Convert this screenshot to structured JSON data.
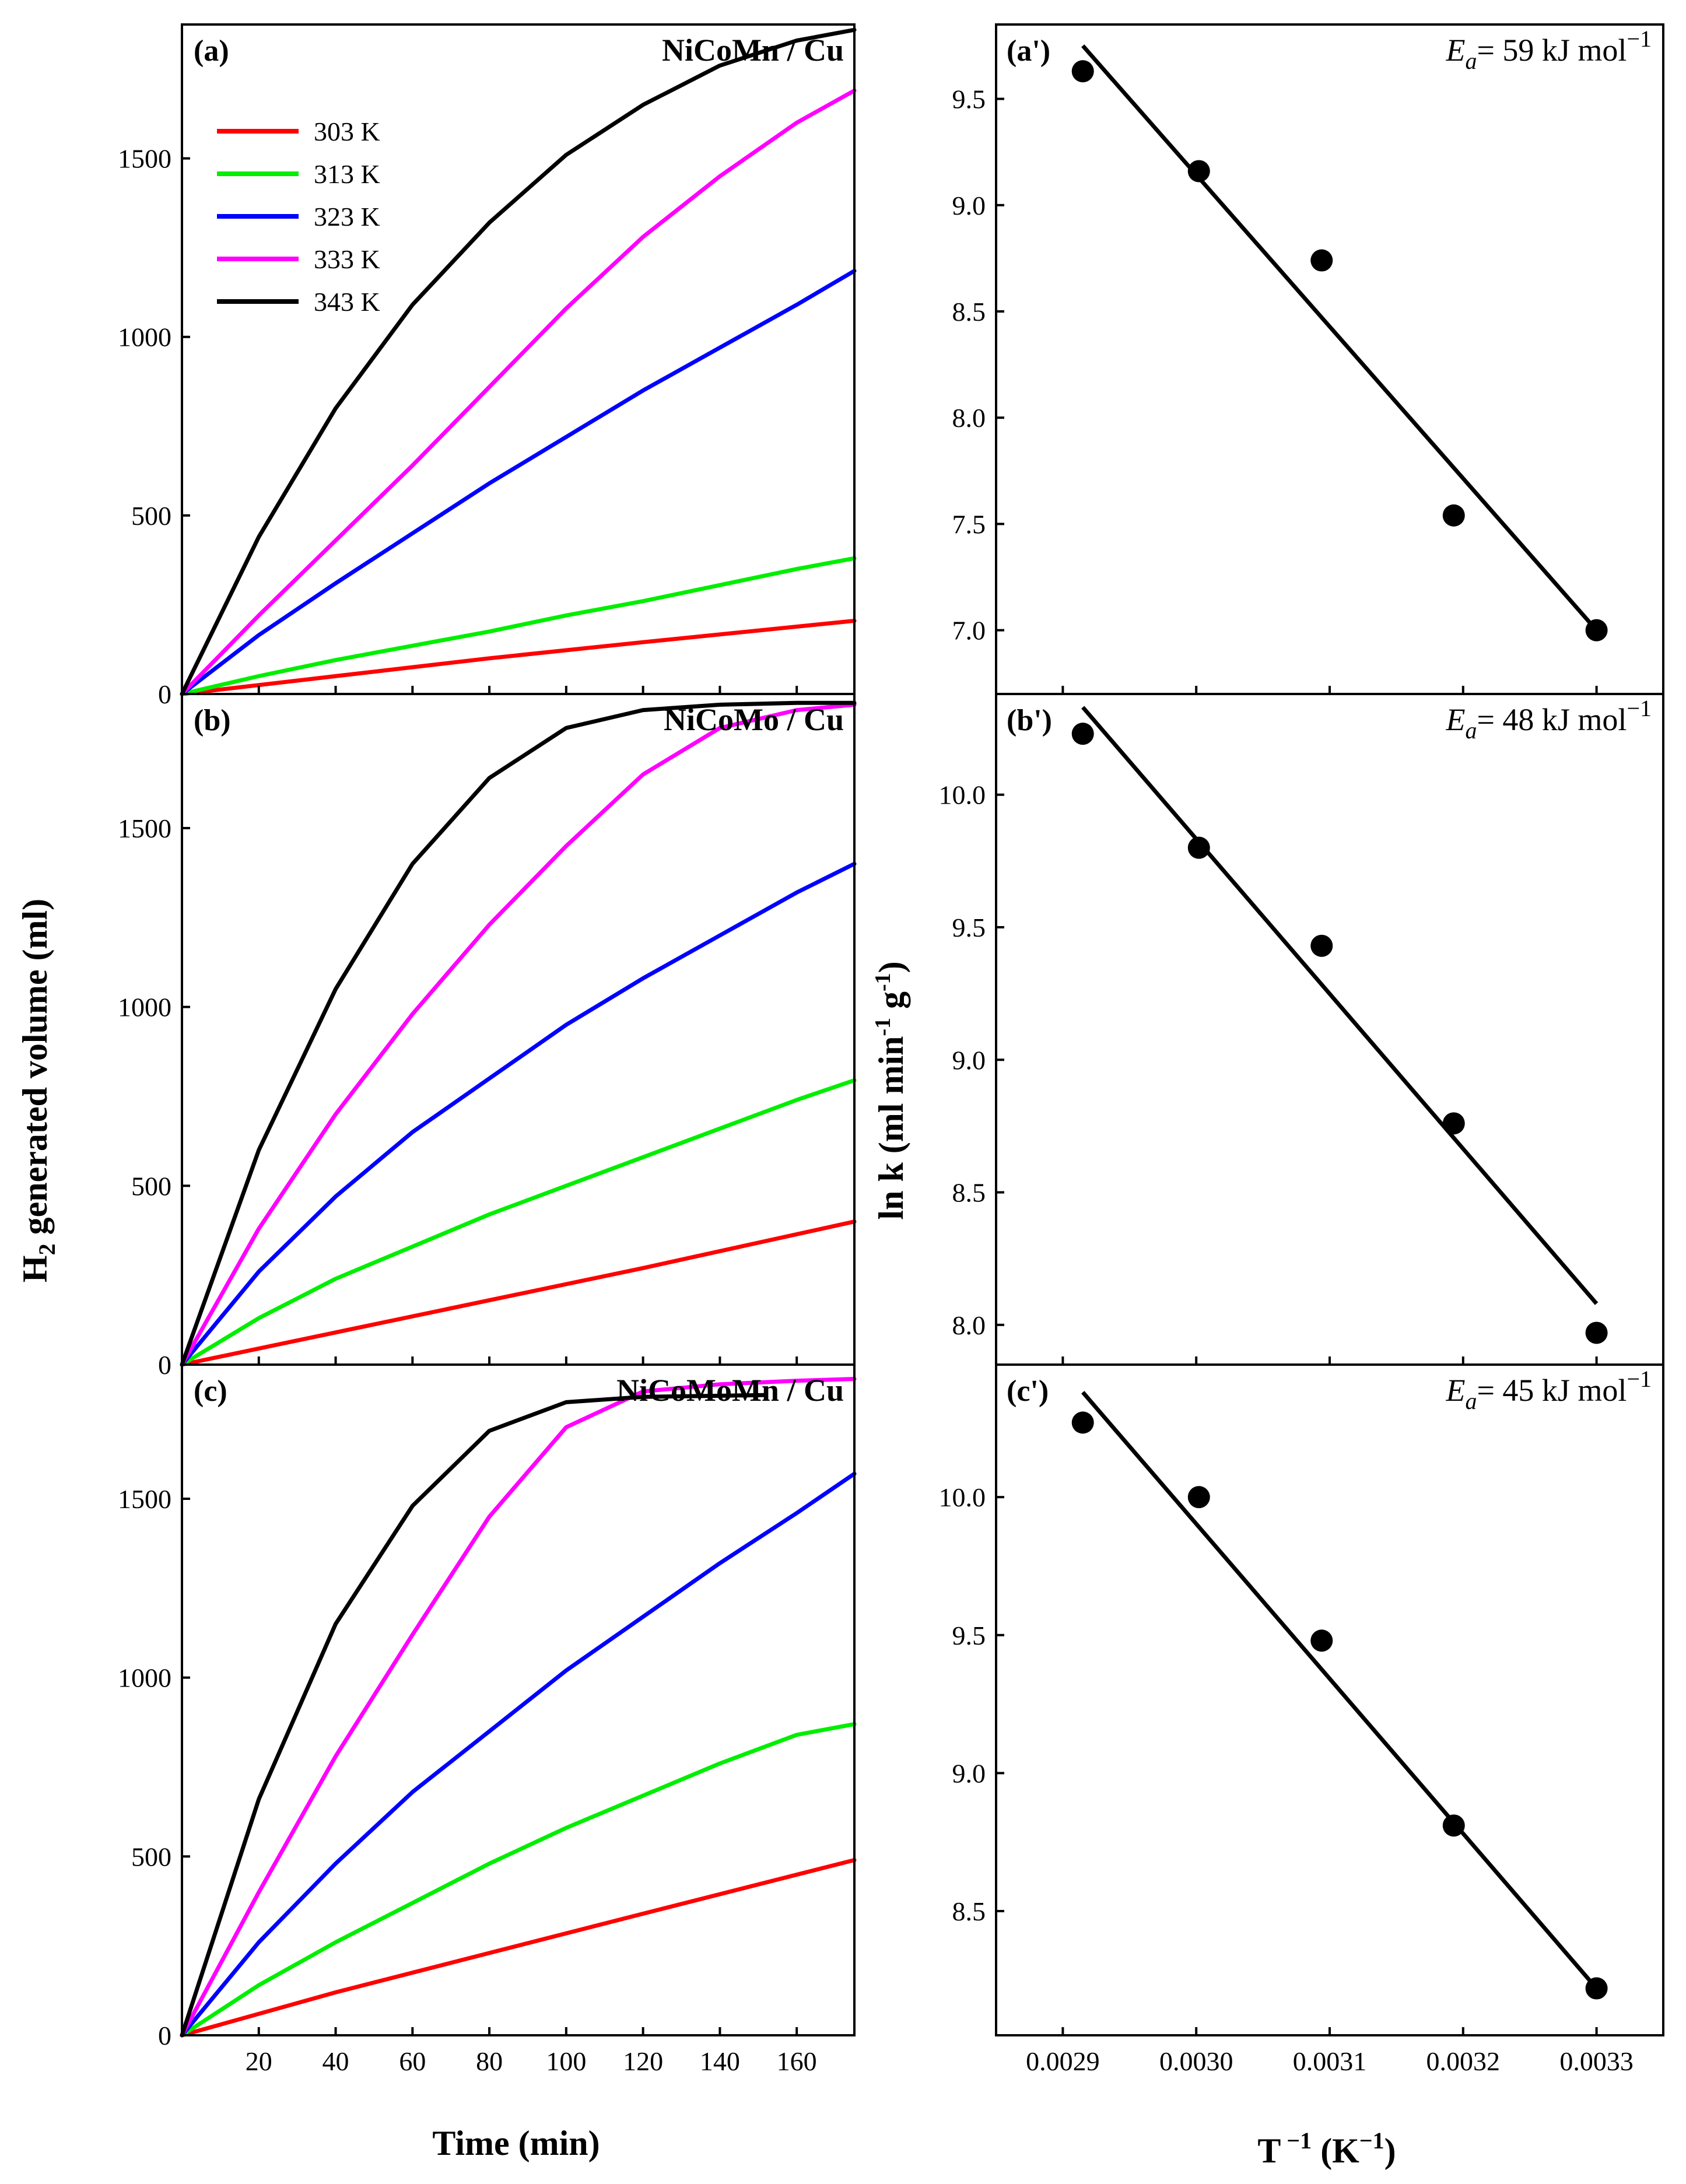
{
  "colors": {
    "303 K": "#ff0000",
    "313 K": "#00ee00",
    "323 K": "#0000ff",
    "333 K": "#ff00ff",
    "343 K": "#000000"
  },
  "left_axis": {
    "ylabel_main": "H",
    "ylabel_sub": "2",
    "ylabel_rest": " generated volume (ml)",
    "xlabel": "Time (min)",
    "xlim": [
      0,
      175
    ],
    "ylim": [
      0,
      1875
    ],
    "yticks": [
      0,
      500,
      1000,
      1500
    ],
    "xticks": [
      20,
      40,
      60,
      80,
      100,
      120,
      140,
      160
    ]
  },
  "right_axis": {
    "ylabel_main": "ln k (ml min",
    "ylabel_sup1": "-1",
    "ylabel_mid": " g",
    "ylabel_sup2": "-1",
    "ylabel_end": ")",
    "xlabel_main": "T",
    "xlabel_sup1": " −1",
    "xlabel_mid": " (K",
    "xlabel_sup2": "−1",
    "xlabel_end": ")",
    "xlim": [
      0.00285,
      0.00335
    ],
    "xticks": [
      "0.0029",
      "0.0030",
      "0.0031",
      "0.0032",
      "0.0033"
    ]
  },
  "legend": [
    "303 K",
    "313 K",
    "323 K",
    "333 K",
    "343 K"
  ],
  "chart_data": [
    {
      "type": "line",
      "panel": "(a)",
      "title": "NiCoMn / Cu",
      "xlabel": "Time (min)",
      "ylabel": "H2 generated volume (ml)",
      "xlim": [
        0,
        175
      ],
      "ylim": [
        0,
        1875
      ],
      "series": [
        {
          "name": "303 K",
          "x": [
            0,
            40,
            80,
            120,
            175
          ],
          "values": [
            0,
            50,
            100,
            145,
            205
          ]
        },
        {
          "name": "313 K",
          "x": [
            0,
            20,
            40,
            60,
            80,
            100,
            120,
            140,
            160,
            175
          ],
          "values": [
            0,
            50,
            95,
            135,
            175,
            220,
            260,
            305,
            350,
            380
          ]
        },
        {
          "name": "323 K",
          "x": [
            0,
            20,
            40,
            60,
            80,
            100,
            120,
            140,
            160,
            175
          ],
          "values": [
            0,
            165,
            310,
            450,
            590,
            720,
            850,
            970,
            1090,
            1185
          ]
        },
        {
          "name": "333 K",
          "x": [
            0,
            20,
            40,
            60,
            80,
            100,
            120,
            140,
            160,
            175
          ],
          "values": [
            0,
            220,
            430,
            640,
            860,
            1080,
            1280,
            1450,
            1600,
            1690
          ]
        },
        {
          "name": "343 K",
          "x": [
            0,
            20,
            40,
            60,
            80,
            100,
            120,
            140,
            160,
            175
          ],
          "values": [
            0,
            440,
            800,
            1090,
            1320,
            1510,
            1650,
            1760,
            1830,
            1860
          ]
        }
      ]
    },
    {
      "type": "line",
      "panel": "(b)",
      "title": "NiCoMo / Cu",
      "xlabel": "Time (min)",
      "ylabel": "H2 generated volume (ml)",
      "xlim": [
        0,
        175
      ],
      "ylim": [
        0,
        1875
      ],
      "series": [
        {
          "name": "303 K",
          "x": [
            0,
            40,
            80,
            120,
            175
          ],
          "values": [
            0,
            90,
            180,
            270,
            400
          ]
        },
        {
          "name": "313 K",
          "x": [
            0,
            20,
            40,
            60,
            80,
            100,
            120,
            140,
            160,
            175
          ],
          "values": [
            0,
            130,
            240,
            330,
            420,
            500,
            580,
            660,
            740,
            795
          ]
        },
        {
          "name": "323 K",
          "x": [
            0,
            20,
            40,
            60,
            80,
            100,
            120,
            140,
            160,
            175
          ],
          "values": [
            0,
            260,
            470,
            650,
            800,
            950,
            1080,
            1200,
            1320,
            1400
          ]
        },
        {
          "name": "333 K",
          "x": [
            0,
            20,
            40,
            60,
            80,
            100,
            120,
            140,
            160,
            175
          ],
          "values": [
            0,
            380,
            700,
            980,
            1230,
            1450,
            1650,
            1780,
            1830,
            1845
          ]
        },
        {
          "name": "343 K",
          "x": [
            0,
            20,
            40,
            60,
            80,
            100,
            120,
            140,
            160,
            175
          ],
          "values": [
            0,
            600,
            1050,
            1400,
            1640,
            1780,
            1830,
            1845,
            1850,
            1850
          ]
        }
      ]
    },
    {
      "type": "line",
      "panel": "(c)",
      "title": "NiCoMoMn / Cu",
      "xlabel": "Time (min)",
      "ylabel": "H2 generated volume (ml)",
      "xlim": [
        0,
        175
      ],
      "ylim": [
        0,
        1875
      ],
      "series": [
        {
          "name": "303 K",
          "x": [
            0,
            40,
            80,
            120,
            175
          ],
          "values": [
            0,
            120,
            230,
            340,
            490
          ]
        },
        {
          "name": "313 K",
          "x": [
            0,
            20,
            40,
            60,
            80,
            100,
            120,
            140,
            160,
            175
          ],
          "values": [
            0,
            140,
            260,
            370,
            480,
            580,
            670,
            760,
            840,
            870
          ]
        },
        {
          "name": "323 K",
          "x": [
            0,
            20,
            40,
            60,
            80,
            100,
            120,
            140,
            160,
            175
          ],
          "values": [
            0,
            260,
            480,
            680,
            850,
            1020,
            1170,
            1320,
            1460,
            1570
          ]
        },
        {
          "name": "333 K",
          "x": [
            0,
            20,
            40,
            60,
            80,
            100,
            120,
            140,
            160,
            175
          ],
          "values": [
            0,
            400,
            780,
            1120,
            1450,
            1700,
            1800,
            1820,
            1830,
            1835
          ]
        },
        {
          "name": "343 K",
          "x": [
            0,
            20,
            40,
            60,
            80,
            100,
            120,
            140,
            152
          ],
          "values": [
            0,
            660,
            1150,
            1480,
            1690,
            1770,
            1785,
            1788,
            1790
          ]
        }
      ]
    },
    {
      "type": "scatter",
      "panel": "(a')",
      "ea_label": "= 59 kJ mol",
      "xlabel": "T −1 (K−1)",
      "ylabel": "ln k (ml min-1 g-1)",
      "xlim": [
        0.00285,
        0.00335
      ],
      "ylim": [
        6.7,
        9.85
      ],
      "yticks": [
        "7.0",
        "7.5",
        "8.0",
        "8.5",
        "9.0",
        "9.5"
      ],
      "x": [
        0.002915,
        0.003002,
        0.003094,
        0.003193,
        0.0033
      ],
      "y": [
        9.63,
        9.16,
        8.74,
        7.54,
        7.0
      ],
      "fit": {
        "x": [
          0.002915,
          0.0033
        ],
        "y": [
          9.75,
          7.0
        ]
      }
    },
    {
      "type": "scatter",
      "panel": "(b')",
      "ea_label": "= 48 kJ mol",
      "xlabel": "T −1 (K−1)",
      "ylabel": "ln k (ml min-1 g-1)",
      "xlim": [
        0.00285,
        0.00335
      ],
      "ylim": [
        7.85,
        10.38
      ],
      "yticks": [
        "8.0",
        "8.5",
        "9.0",
        "9.5",
        "10.0"
      ],
      "x": [
        0.002915,
        0.003002,
        0.003094,
        0.003193,
        0.0033
      ],
      "y": [
        10.23,
        9.8,
        9.43,
        8.76,
        7.97
      ],
      "fit": {
        "x": [
          0.002915,
          0.0033
        ],
        "y": [
          10.33,
          8.08
        ]
      }
    },
    {
      "type": "scatter",
      "panel": "(c')",
      "ea_label": "= 45 kJ mol",
      "xlabel": "T −1 (K−1)",
      "ylabel": "ln k (ml min-1 g-1)",
      "xlim": [
        0.00285,
        0.00335
      ],
      "ylim": [
        8.05,
        10.48
      ],
      "yticks": [
        "8.5",
        "9.0",
        "9.5",
        "10.0"
      ],
      "x": [
        0.002915,
        0.003002,
        0.003094,
        0.003193,
        0.0033
      ],
      "y": [
        10.27,
        10.0,
        9.48,
        8.81,
        8.22
      ],
      "fit": {
        "x": [
          0.002915,
          0.0033
        ],
        "y": [
          10.38,
          8.22
        ]
      }
    }
  ]
}
